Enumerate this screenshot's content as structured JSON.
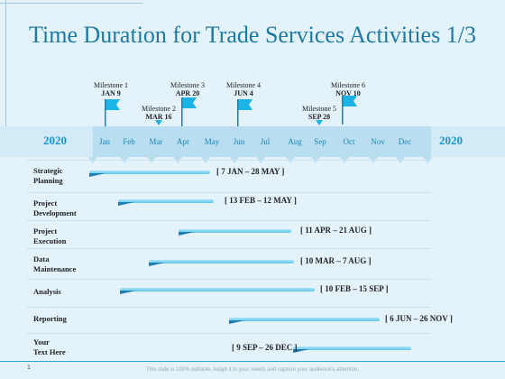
{
  "title": "Time Duration for Trade Services Activities 1/3",
  "year_left": "2020",
  "year_right": "2020",
  "months": [
    "Jan",
    "Feb",
    "Mar",
    "Apr",
    "May",
    "Jun",
    "Jul",
    "Aug",
    "Sep",
    "Oct",
    "Nov",
    "Dec"
  ],
  "milestones": [
    {
      "name": "Milestone 1",
      "date": "JAN 9"
    },
    {
      "name": "Milestone 2",
      "date": "MAR 16"
    },
    {
      "name": "Milestone 3",
      "date": "APR 20"
    },
    {
      "name": "Milestone 4",
      "date": "JUN 4"
    },
    {
      "name": "Milestone 5",
      "date": "SEP 28"
    },
    {
      "name": "Milestone 6",
      "date": "NOV 10"
    }
  ],
  "activities": [
    {
      "label": [
        "Strategic",
        "Planning"
      ],
      "range": "[ 7 JAN – 28 MAY ]"
    },
    {
      "label": [
        "Project",
        "Development"
      ],
      "range": "[ 13 FEB – 12 MAY ]"
    },
    {
      "label": [
        "Project",
        "Execution"
      ],
      "range": "[ 11 APR – 21 AUG ]"
    },
    {
      "label": [
        "Data",
        "Maintenance"
      ],
      "range": "[ 10 MAR – 7 AUG ]"
    },
    {
      "label": [
        "Analysis"
      ],
      "range": "[ 10 FEB – 15 SEP ]"
    },
    {
      "label": [
        "Reporting"
      ],
      "range": "[ 6 JUN – 26 NOV ]"
    },
    {
      "label": [
        "Your",
        "Text Here"
      ],
      "range": "[ 9 SEP – 26 DEC ]"
    }
  ],
  "footer": "This slide is 100% editable. Adapt it to your needs and capture your audience's attention.",
  "page_number": "1",
  "colors": {
    "accent": "#1d7aa1",
    "flag": "#1cb4e6",
    "bar": "#62c7ea",
    "bar_dark": "#1e7fb0"
  }
}
